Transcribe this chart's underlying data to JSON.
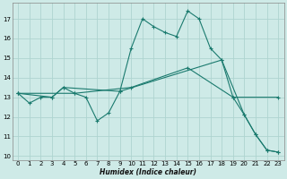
{
  "xlabel": "Humidex (Indice chaleur)",
  "bg_color": "#ceeae7",
  "grid_color": "#aed4d0",
  "line_color": "#1a7a6e",
  "xlim": [
    -0.5,
    23.5
  ],
  "ylim": [
    9.8,
    17.8
  ],
  "yticks": [
    10,
    11,
    12,
    13,
    14,
    15,
    16,
    17
  ],
  "xticks": [
    0,
    1,
    2,
    3,
    4,
    5,
    6,
    7,
    8,
    9,
    10,
    11,
    12,
    13,
    14,
    15,
    16,
    17,
    18,
    19,
    20,
    21,
    22,
    23
  ],
  "series1_x": [
    0,
    1,
    2,
    3,
    4,
    5,
    6,
    7,
    8,
    9,
    10,
    11,
    12,
    13,
    14,
    15,
    16,
    17,
    18,
    19,
    20,
    21,
    22,
    23
  ],
  "series1_y": [
    13.2,
    12.7,
    13.0,
    13.0,
    13.5,
    13.2,
    13.0,
    11.8,
    12.2,
    13.3,
    15.5,
    17.0,
    16.6,
    16.3,
    16.1,
    17.4,
    17.0,
    15.5,
    14.9,
    13.0,
    12.1,
    11.1,
    10.3,
    10.2
  ],
  "series2_x": [
    0,
    3,
    4,
    9,
    18,
    20,
    21,
    22,
    23
  ],
  "series2_y": [
    13.2,
    13.0,
    13.5,
    13.3,
    14.9,
    12.1,
    11.1,
    10.3,
    10.2
  ],
  "series3_x": [
    0,
    5,
    10,
    15,
    19,
    23
  ],
  "series3_y": [
    13.2,
    13.2,
    13.5,
    14.5,
    13.0,
    13.0
  ]
}
